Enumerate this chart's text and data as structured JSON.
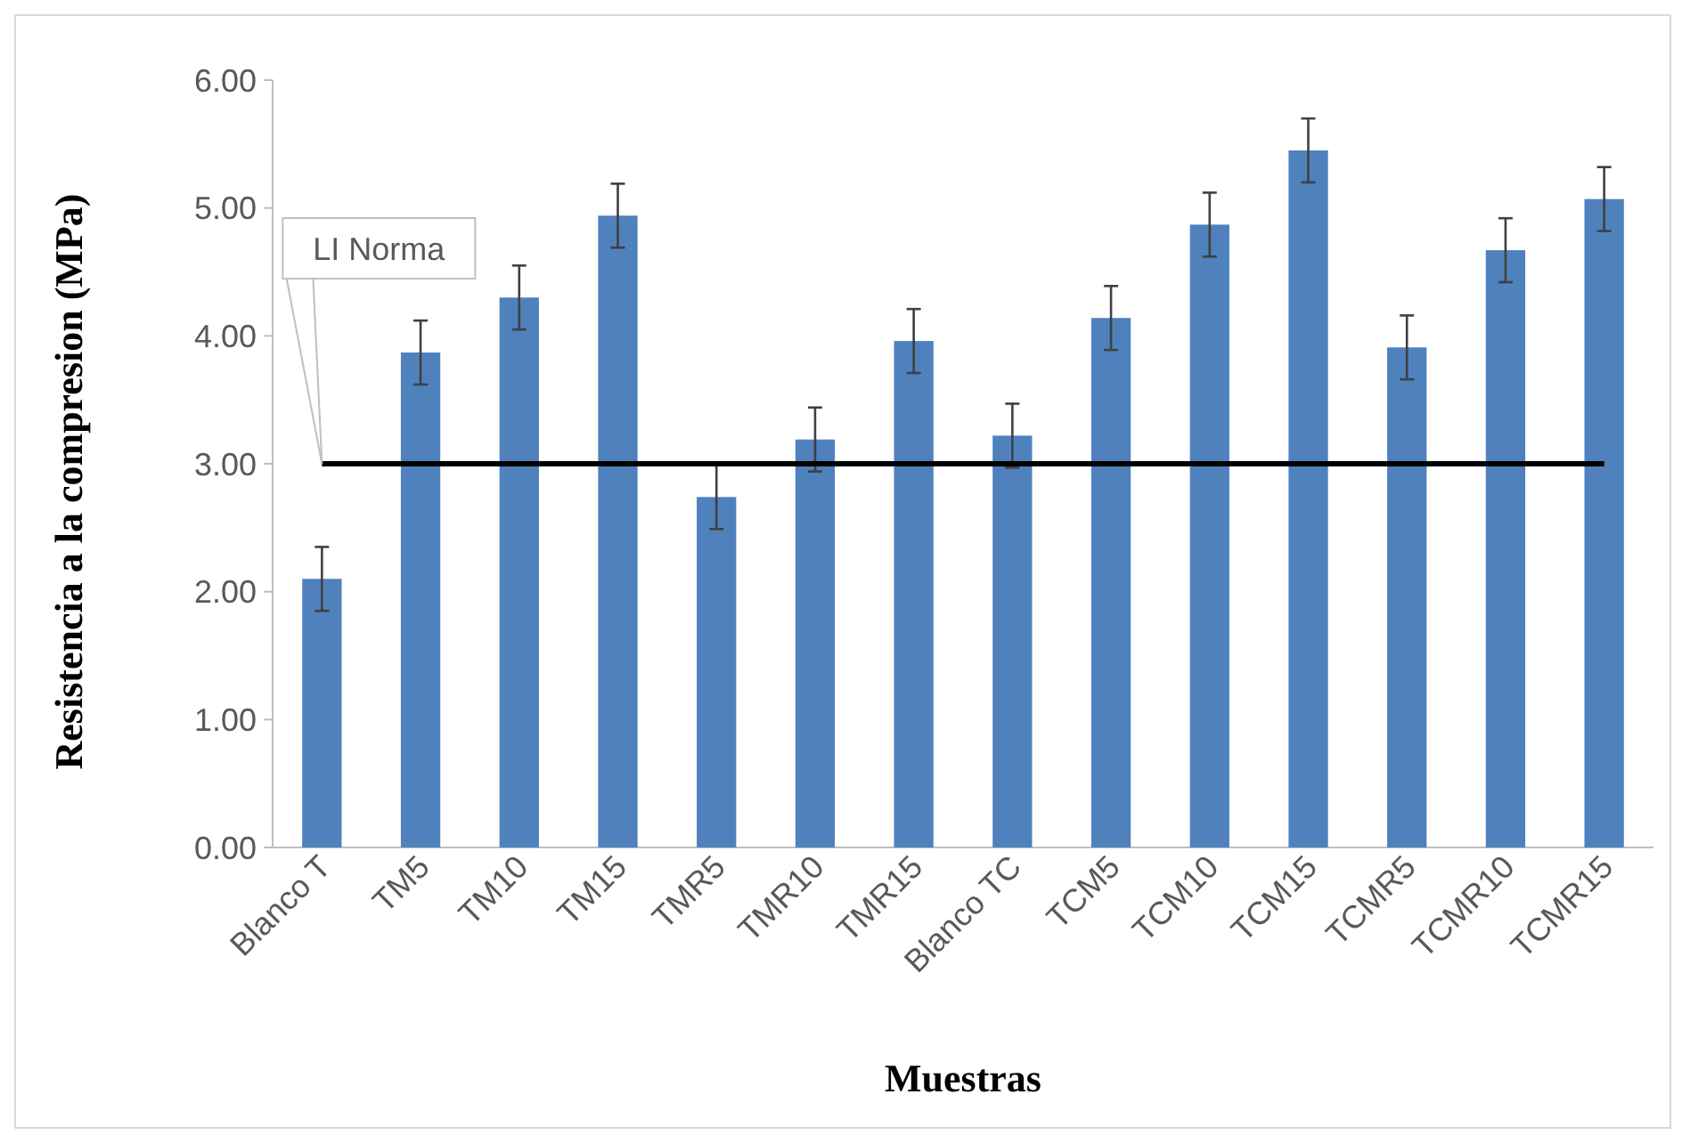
{
  "chart_data": {
    "type": "bar",
    "xlabel": "Muestras",
    "ylabel": "Resistencia a la compresion (MPa)",
    "categories": [
      "Blanco T",
      "TM5",
      "TM10",
      "TM15",
      "TMR5",
      "TMR10",
      "TMR15",
      "Blanco TC",
      "TCM5",
      "TCM10",
      "TCM15",
      "TCMR5",
      "TCMR10",
      "TCMR15"
    ],
    "values": [
      2.1,
      3.87,
      4.3,
      4.94,
      2.74,
      3.19,
      3.96,
      3.22,
      4.14,
      4.87,
      5.45,
      3.91,
      4.67,
      5.07
    ],
    "errors": [
      0.25,
      0.25,
      0.25,
      0.25,
      0.25,
      0.25,
      0.25,
      0.25,
      0.25,
      0.25,
      0.25,
      0.25,
      0.25,
      0.25
    ],
    "color": "#4f81bd",
    "ylim": [
      0,
      6
    ],
    "yticks": [
      {
        "value": 0,
        "label": "0.00"
      },
      {
        "value": 1,
        "label": "1.00"
      },
      {
        "value": 2,
        "label": "2.00"
      },
      {
        "value": 3,
        "label": "3.00"
      },
      {
        "value": 4,
        "label": "4.00"
      },
      {
        "value": 5,
        "label": "5.00"
      },
      {
        "value": 6,
        "label": "6.00"
      }
    ],
    "ref_lines": [
      {
        "axis": "y",
        "value": 3,
        "label": "LI Norma",
        "color": "#000000"
      }
    ],
    "grid": false
  }
}
